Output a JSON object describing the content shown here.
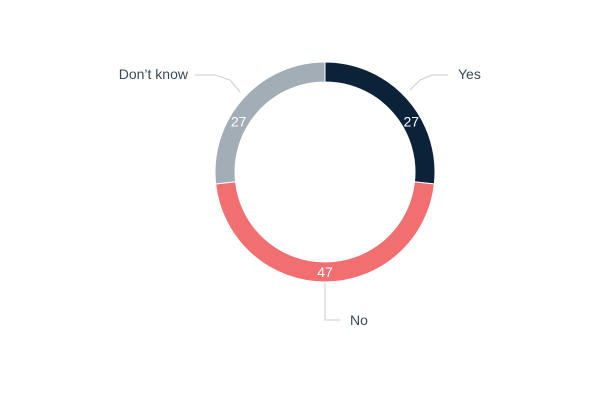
{
  "chart_data": {
    "type": "pie",
    "donut": true,
    "categories": [
      "Yes",
      "No",
      "Don’t know"
    ],
    "values": [
      27,
      47,
      27
    ],
    "colors": [
      "#0b2239",
      "#f26f71",
      "#a2adb5"
    ],
    "slice_labels": [
      "27",
      "47",
      "27"
    ],
    "legend": "leader-lines"
  }
}
